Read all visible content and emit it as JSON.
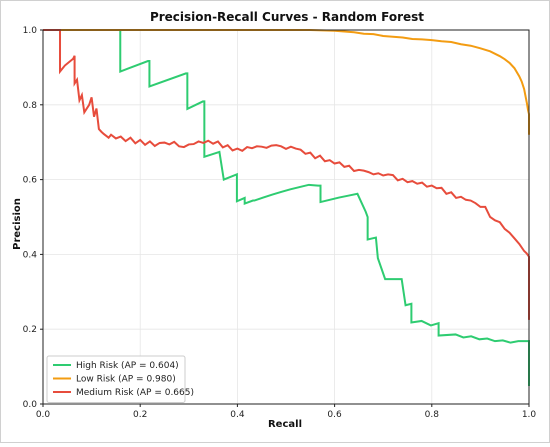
{
  "chart_data": {
    "type": "line",
    "title": "Precision-Recall Curves - Random Forest",
    "xlabel": "Recall",
    "ylabel": "Precision",
    "xlim": [
      0.0,
      1.0
    ],
    "ylim": [
      0.0,
      1.0
    ],
    "x_ticks": [
      "0.0",
      "0.2",
      "0.4",
      "0.6",
      "0.8",
      "1.0"
    ],
    "y_ticks": [
      "0.0",
      "0.2",
      "0.4",
      "0.6",
      "0.8",
      "1.0"
    ],
    "grid": true,
    "legend_position": "lower-left",
    "series": [
      {
        "name": "High Risk (AP = 0.604)",
        "color": "#2ecc71",
        "x": [
          0.0,
          0.159,
          0.159,
          0.216,
          0.219,
          0.219,
          0.294,
          0.297,
          0.297,
          0.329,
          0.332,
          0.332,
          0.363,
          0.372,
          0.399,
          0.399,
          0.415,
          0.415,
          0.432,
          0.435,
          0.453,
          0.472,
          0.49,
          0.509,
          0.528,
          0.547,
          0.566,
          0.571,
          0.571,
          0.59,
          0.609,
          0.628,
          0.647,
          0.664,
          0.668,
          0.668,
          0.685,
          0.689,
          0.689,
          0.704,
          0.704,
          0.738,
          0.746,
          0.758,
          0.758,
          0.779,
          0.798,
          0.814,
          0.814,
          0.849,
          0.865,
          0.881,
          0.898,
          0.914,
          0.93,
          0.946,
          0.962,
          0.978,
          1.0,
          1.0
        ],
        "y": [
          1.0,
          1.0,
          0.889,
          0.917,
          0.917,
          0.849,
          0.884,
          0.884,
          0.789,
          0.809,
          0.809,
          0.661,
          0.674,
          0.6,
          0.614,
          0.542,
          0.551,
          0.536,
          0.544,
          0.544,
          0.552,
          0.56,
          0.567,
          0.574,
          0.58,
          0.586,
          0.584,
          0.584,
          0.54,
          0.546,
          0.552,
          0.557,
          0.562,
          0.514,
          0.5,
          0.44,
          0.445,
          0.39,
          0.39,
          0.334,
          0.334,
          0.334,
          0.264,
          0.268,
          0.218,
          0.222,
          0.21,
          0.216,
          0.183,
          0.186,
          0.178,
          0.181,
          0.173,
          0.175,
          0.168,
          0.17,
          0.164,
          0.168,
          0.168,
          0.048
        ]
      },
      {
        "name": "Low Risk (AP = 0.980)",
        "color": "#f39c12",
        "x": [
          0.0,
          0.05,
          0.1,
          0.15,
          0.2,
          0.25,
          0.3,
          0.35,
          0.4,
          0.45,
          0.5,
          0.55,
          0.6,
          0.62,
          0.64,
          0.66,
          0.68,
          0.7,
          0.72,
          0.74,
          0.76,
          0.78,
          0.8,
          0.82,
          0.84,
          0.86,
          0.88,
          0.9,
          0.92,
          0.94,
          0.95,
          0.96,
          0.97,
          0.98,
          0.985,
          0.99,
          0.993,
          0.996,
          0.998,
          1.0,
          1.0
        ],
        "y": [
          1.0,
          1.0,
          1.0,
          1.0,
          1.0,
          1.0,
          1.0,
          1.0,
          1.0,
          1.0,
          1.0,
          1.0,
          0.998,
          0.996,
          0.994,
          0.99,
          0.989,
          0.984,
          0.982,
          0.98,
          0.976,
          0.975,
          0.973,
          0.97,
          0.968,
          0.962,
          0.958,
          0.951,
          0.943,
          0.93,
          0.922,
          0.912,
          0.898,
          0.876,
          0.862,
          0.842,
          0.822,
          0.802,
          0.786,
          0.775,
          0.72
        ]
      },
      {
        "name": "Medium Risk (AP = 0.665)",
        "color": "#e74c3c",
        "x": [
          0.0,
          0.035,
          0.035,
          0.045,
          0.062,
          0.065,
          0.065,
          0.07,
          0.075,
          0.08,
          0.085,
          0.09,
          0.095,
          0.1,
          0.105,
          0.11,
          0.115,
          0.12,
          0.125,
          0.13,
          0.135,
          0.14,
          0.15,
          0.16,
          0.17,
          0.18,
          0.19,
          0.2,
          0.21,
          0.22,
          0.23,
          0.24,
          0.25,
          0.26,
          0.27,
          0.28,
          0.29,
          0.3,
          0.31,
          0.32,
          0.33,
          0.34,
          0.35,
          0.36,
          0.37,
          0.38,
          0.39,
          0.4,
          0.41,
          0.42,
          0.43,
          0.44,
          0.45,
          0.46,
          0.47,
          0.48,
          0.49,
          0.5,
          0.51,
          0.52,
          0.53,
          0.54,
          0.55,
          0.56,
          0.57,
          0.58,
          0.59,
          0.6,
          0.61,
          0.62,
          0.63,
          0.64,
          0.65,
          0.66,
          0.67,
          0.68,
          0.69,
          0.7,
          0.71,
          0.72,
          0.73,
          0.74,
          0.75,
          0.76,
          0.77,
          0.78,
          0.79,
          0.8,
          0.81,
          0.82,
          0.83,
          0.84,
          0.85,
          0.86,
          0.87,
          0.88,
          0.89,
          0.9,
          0.91,
          0.92,
          0.93,
          0.94,
          0.95,
          0.96,
          0.97,
          0.98,
          0.99,
          0.995,
          1.0,
          1.0
        ],
        "y": [
          1.0,
          1.0,
          0.889,
          0.905,
          0.923,
          0.931,
          0.857,
          0.867,
          0.812,
          0.826,
          0.78,
          0.79,
          0.8,
          0.82,
          0.768,
          0.79,
          0.735,
          0.728,
          0.722,
          0.717,
          0.712,
          0.72,
          0.71,
          0.715,
          0.703,
          0.712,
          0.697,
          0.706,
          0.693,
          0.702,
          0.69,
          0.698,
          0.699,
          0.694,
          0.701,
          0.689,
          0.687,
          0.694,
          0.695,
          0.702,
          0.698,
          0.704,
          0.696,
          0.702,
          0.686,
          0.692,
          0.678,
          0.683,
          0.677,
          0.687,
          0.684,
          0.689,
          0.688,
          0.685,
          0.691,
          0.692,
          0.689,
          0.682,
          0.688,
          0.683,
          0.68,
          0.669,
          0.672,
          0.657,
          0.664,
          0.649,
          0.652,
          0.643,
          0.646,
          0.634,
          0.637,
          0.623,
          0.626,
          0.624,
          0.62,
          0.614,
          0.617,
          0.611,
          0.614,
          0.612,
          0.598,
          0.602,
          0.593,
          0.596,
          0.589,
          0.592,
          0.581,
          0.584,
          0.577,
          0.578,
          0.562,
          0.566,
          0.551,
          0.554,
          0.546,
          0.544,
          0.537,
          0.527,
          0.527,
          0.5,
          0.491,
          0.486,
          0.468,
          0.458,
          0.443,
          0.428,
          0.409,
          0.403,
          0.394,
          0.225
        ]
      }
    ]
  }
}
